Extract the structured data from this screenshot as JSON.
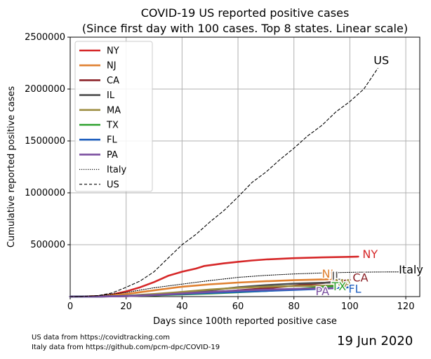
{
  "chart_data": {
    "type": "line",
    "title": "COVID-19 US reported positive cases",
    "subtitle": "(Since first day with 100 cases. Top 8 states. Linear scale)",
    "xlabel": "Days since 100th reported positive case",
    "ylabel": "Cumulative reported positive cases",
    "xlim": [
      0,
      125
    ],
    "ylim": [
      0,
      2500000
    ],
    "x_ticks": [
      0,
      20,
      40,
      60,
      80,
      100,
      120
    ],
    "y_ticks": [
      500000,
      1000000,
      1500000,
      2000000,
      2500000
    ],
    "x_tick_labels": [
      "0",
      "20",
      "40",
      "60",
      "80",
      "100",
      "120"
    ],
    "y_tick_labels": [
      "500000",
      "1000000",
      "1500000",
      "2000000",
      "2500000"
    ],
    "grid": true,
    "legend_position": "top-left",
    "series": [
      {
        "name": "NY",
        "color": "#d62728",
        "style": "solid",
        "end_label": "NY",
        "x": [
          0,
          5,
          10,
          15,
          20,
          25,
          30,
          35,
          40,
          45,
          48,
          55,
          60,
          65,
          70,
          80,
          90,
          100,
          103
        ],
        "y": [
          0,
          1000,
          5000,
          20000,
          50000,
          90000,
          140000,
          200000,
          240000,
          270000,
          295000,
          320000,
          335000,
          348000,
          358000,
          370000,
          378000,
          383000,
          385000
        ]
      },
      {
        "name": "NJ",
        "color": "#e08030",
        "style": "solid",
        "end_label": "NJ",
        "x": [
          0,
          10,
          20,
          30,
          40,
          50,
          60,
          70,
          80,
          90,
          95
        ],
        "y": [
          0,
          3000,
          25000,
          60000,
          95000,
          118000,
          135000,
          148000,
          158000,
          165000,
          168000
        ]
      },
      {
        "name": "CA",
        "color": "#8b2228",
        "style": "solid",
        "end_label": "CA",
        "x": [
          0,
          10,
          20,
          30,
          40,
          50,
          60,
          70,
          80,
          90,
          100
        ],
        "y": [
          0,
          1000,
          5000,
          12000,
          25000,
          40000,
          60000,
          80000,
          105000,
          130000,
          160000
        ]
      },
      {
        "name": "IL",
        "color": "#4d4d4d",
        "style": "solid",
        "end_label": "IL",
        "x": [
          0,
          10,
          20,
          30,
          40,
          50,
          60,
          70,
          80,
          90,
          95
        ],
        "y": [
          0,
          1000,
          6000,
          15000,
          35000,
          60000,
          90000,
          110000,
          125000,
          133000,
          135000
        ]
      },
      {
        "name": "MA",
        "color": "#9c8c40",
        "style": "solid",
        "end_label": "MA",
        "x": [
          0,
          10,
          20,
          30,
          40,
          50,
          60,
          70,
          80,
          90,
          95
        ],
        "y": [
          0,
          1000,
          8000,
          25000,
          45000,
          68000,
          85000,
          95000,
          101000,
          105000,
          106000
        ]
      },
      {
        "name": "TX",
        "color": "#2ca02c",
        "style": "solid",
        "end_label": "TX",
        "x": [
          0,
          10,
          20,
          30,
          40,
          50,
          60,
          70,
          80,
          90,
          94
        ],
        "y": [
          0,
          800,
          5000,
          12000,
          20000,
          30000,
          42000,
          55000,
          70000,
          93000,
          100000
        ]
      },
      {
        "name": "FL",
        "color": "#1f5fbf",
        "style": "solid",
        "end_label": "FL",
        "x": [
          0,
          10,
          20,
          30,
          40,
          50,
          60,
          70,
          80,
          90,
          100
        ],
        "y": [
          0,
          1000,
          6000,
          15000,
          25000,
          35000,
          45000,
          55000,
          65000,
          75000,
          90000
        ]
      },
      {
        "name": "PA",
        "color": "#7b4fa0",
        "style": "solid",
        "end_label": "PA",
        "x": [
          0,
          10,
          20,
          30,
          40,
          50,
          60,
          70,
          80,
          90,
          94
        ],
        "y": [
          0,
          500,
          4000,
          15000,
          30000,
          45000,
          58000,
          67000,
          74000,
          79000,
          81000
        ]
      },
      {
        "name": "Italy",
        "color": "#000000",
        "style": "dotted",
        "end_label": "Italy",
        "x": [
          0,
          10,
          20,
          30,
          40,
          50,
          60,
          70,
          80,
          90,
          100,
          110,
          118
        ],
        "y": [
          0,
          8000,
          40000,
          85000,
          120000,
          155000,
          185000,
          205000,
          218000,
          228000,
          234000,
          237000,
          238000
        ]
      },
      {
        "name": "US",
        "color": "#000000",
        "style": "dashed",
        "end_label": "US",
        "x": [
          0,
          5,
          10,
          15,
          20,
          25,
          30,
          35,
          40,
          45,
          50,
          55,
          60,
          65,
          70,
          75,
          80,
          85,
          90,
          95,
          100,
          105,
          110
        ],
        "y": [
          0,
          2000,
          10000,
          35000,
          90000,
          150000,
          240000,
          370000,
          500000,
          600000,
          720000,
          830000,
          960000,
          1100000,
          1200000,
          1320000,
          1430000,
          1550000,
          1650000,
          1780000,
          1880000,
          2000000,
          2200000
        ]
      }
    ]
  },
  "footer": {
    "source_us": "US data from https://covidtracking.com",
    "source_italy": "Italy data from https://github.com/pcm-dpc/COVID-19",
    "date": "19 Jun 2020"
  }
}
